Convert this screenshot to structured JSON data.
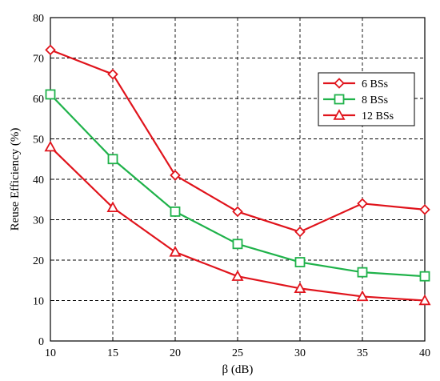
{
  "chart_data": {
    "type": "line",
    "title": "",
    "xlabel": "β (dB)",
    "ylabel": "Reuse Efficiency (%)",
    "x": [
      10,
      15,
      20,
      25,
      30,
      35,
      40
    ],
    "xlim": [
      10,
      40
    ],
    "ylim": [
      0,
      80
    ],
    "x_ticks": [
      "10",
      "15",
      "20",
      "25",
      "30",
      "35",
      "40"
    ],
    "y_ticks": [
      "0",
      "10",
      "20",
      "30",
      "40",
      "50",
      "60",
      "70",
      "80"
    ],
    "grid": true,
    "legend_position": "top-right",
    "series": [
      {
        "name": "6 BSs",
        "marker": "diamond",
        "color": "#e0141c",
        "values": [
          72,
          66,
          41,
          32,
          27,
          34,
          32.5
        ]
      },
      {
        "name": "8 BSs",
        "marker": "square",
        "color": "#1fb24a",
        "values": [
          61,
          45,
          32,
          24,
          19.5,
          17,
          16
        ]
      },
      {
        "name": "12 BSs",
        "marker": "triangle",
        "color": "#e0141c",
        "values": [
          48,
          33,
          22,
          16,
          13,
          11,
          10
        ]
      }
    ]
  }
}
